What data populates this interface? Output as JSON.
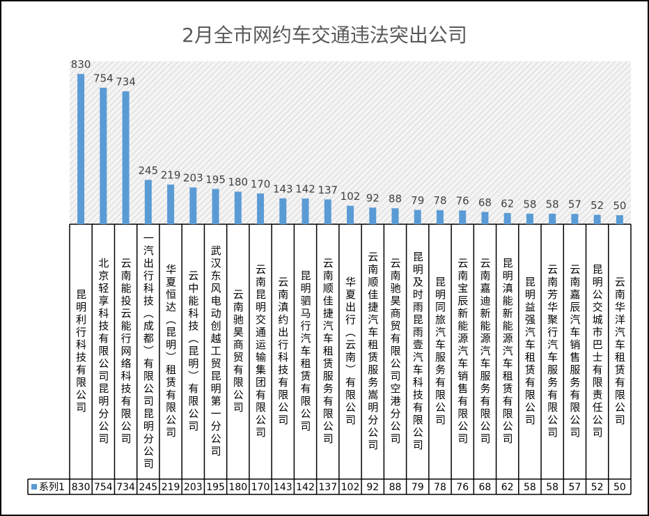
{
  "chart_data": {
    "type": "bar",
    "title": "2月全市网约车交通违法突出公司",
    "categories": [
      "昆明利行科技有限公司",
      "北京轻享科技有限公司昆明分公司",
      "云南能投云能行网络科技有限公司",
      "一汽出行科技（成都）有限公司昆明分公司",
      "华夏恒达（昆明）租赁有限公司",
      "云中能科技（昆明）有限公司",
      "武汉东风电动创越工贸昆明第一分公司",
      "云南驰昊商贸有限公司",
      "云南昆明交通运输集团有限公司",
      "云南滇约出行科技有限公司",
      "昆明驷马行汽车租赁有限公司",
      "云南顺佳捷汽车租赁服务有限公司",
      "华夏出行（云南）有限公司",
      "云南顺佳捷汽车租赁服务嵩明分公司",
      "云南驰昊商贸有限公司空港分公司",
      "昆明及时雨昆雨壹汽车科技有限公司",
      "昆明同旅汽车服务有限公司",
      "云南宝辰新能源汽车销售有限公司",
      "云南嘉迪新能源汽车服务有限公司",
      "昆明滇能新能源汽车租赁有限公司",
      "昆明益强汽车租赁有限公司",
      "云南芳华聚行汽车服务有限公司",
      "云南嘉辰汽车销售服务有限公司",
      "昆明公交城市巴士有限责任公司",
      "云南华洋汽车租赁有限公司"
    ],
    "series": [
      {
        "name": "系列1",
        "color": "#5b9bd5",
        "values": [
          830,
          754,
          734,
          245,
          219,
          203,
          195,
          180,
          170,
          143,
          142,
          137,
          102,
          92,
          88,
          79,
          78,
          76,
          68,
          62,
          58,
          58,
          57,
          52,
          50
        ]
      }
    ],
    "ylim": [
      0,
      900
    ]
  }
}
